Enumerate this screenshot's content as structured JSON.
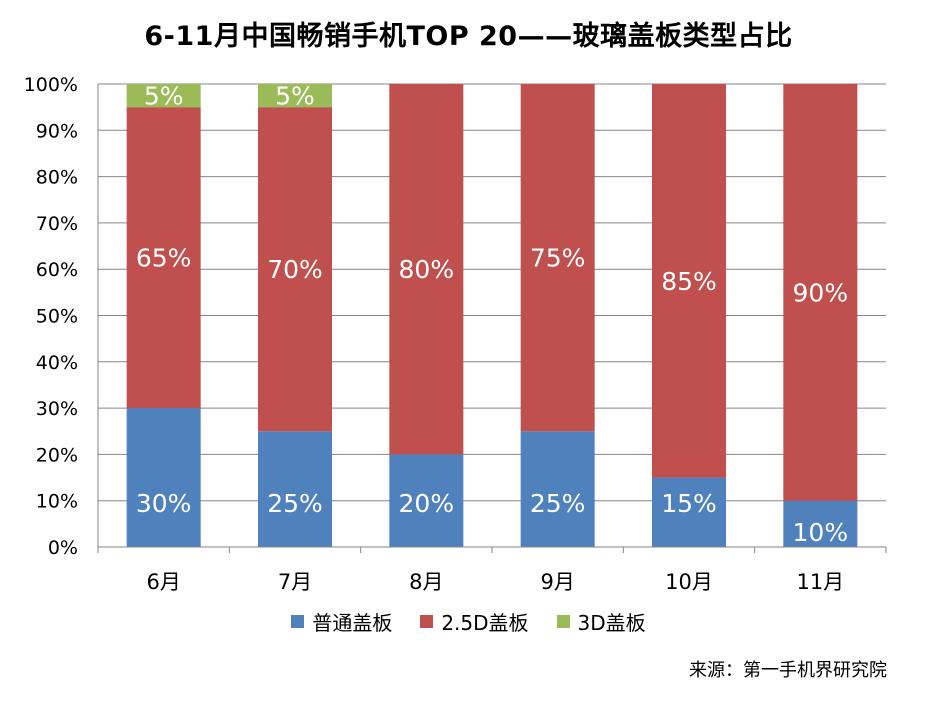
{
  "chart_data": {
    "type": "bar",
    "stacked": true,
    "title": "6-11月中国畅销手机TOP 20——玻璃盖板类型占比",
    "categories": [
      "6月",
      "7月",
      "8月",
      "9月",
      "10月",
      "11月"
    ],
    "series": [
      {
        "name": "普通盖板",
        "color": "#4F81BD",
        "values": [
          30,
          25,
          20,
          25,
          15,
          10
        ],
        "labels": [
          "30%",
          "25%",
          "20%",
          "25%",
          "15%",
          "10%"
        ]
      },
      {
        "name": "2.5D盖板",
        "color": "#C0504D",
        "values": [
          65,
          70,
          80,
          75,
          85,
          90
        ],
        "labels": [
          "65%",
          "70%",
          "80%",
          "75%",
          "85%",
          "90%"
        ]
      },
      {
        "name": "3D盖板",
        "color": "#9BBB59",
        "values": [
          5,
          5,
          0,
          0,
          0,
          0
        ],
        "labels": [
          "5%",
          "5%",
          "",
          "",
          "",
          ""
        ]
      }
    ],
    "ylim": [
      0,
      100
    ],
    "yticks": [
      "0%",
      "10%",
      "20%",
      "30%",
      "40%",
      "50%",
      "60%",
      "70%",
      "80%",
      "90%",
      "100%"
    ],
    "grid": true,
    "legend": "bottom"
  },
  "source": "来源：第一手机界研究院"
}
